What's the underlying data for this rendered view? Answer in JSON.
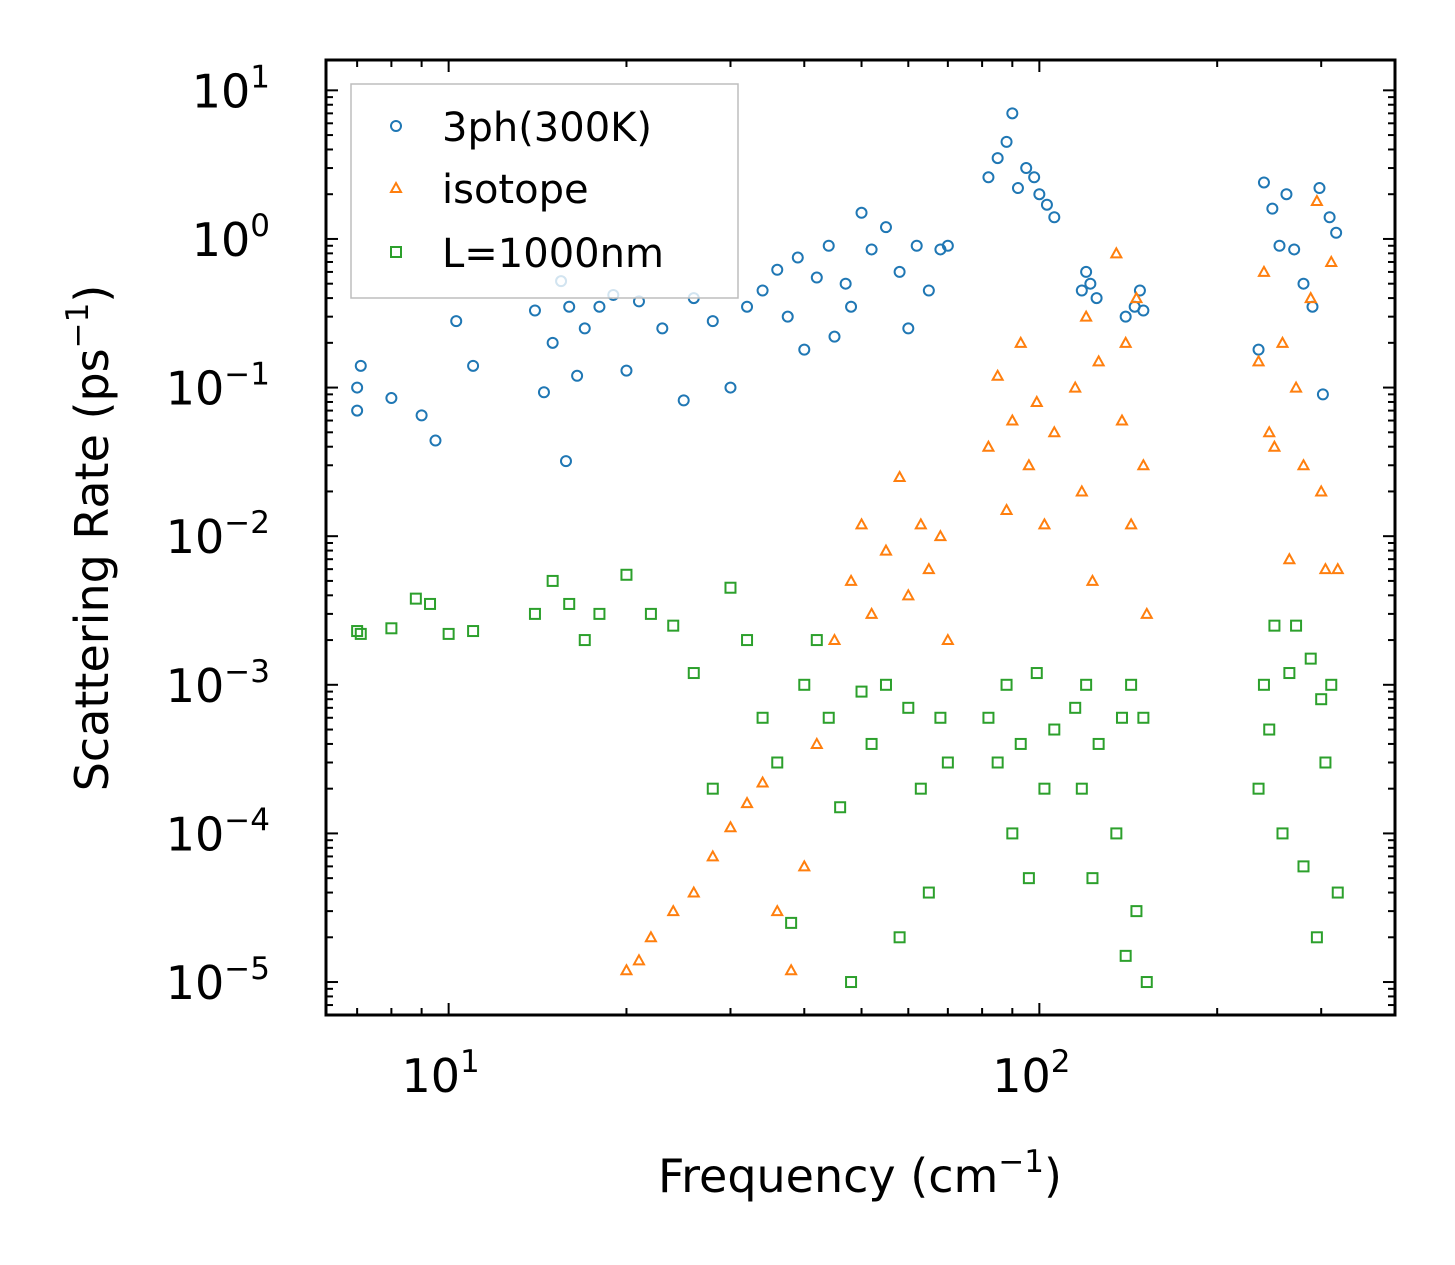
{
  "chart_data": {
    "type": "scatter",
    "xscale": "log",
    "yscale": "log",
    "xlim": [
      6.2,
      400
    ],
    "ylim": [
      6e-06,
      16
    ],
    "xlabel": "Frequency (cm",
    "xlabel_exp": "−1",
    "xlabel_end": ")",
    "ylabel": "Scattering Rate (ps",
    "ylabel_exp": "−1",
    "ylabel_end": ")",
    "x_ticks": [
      {
        "value": 10,
        "base": "10",
        "exp": "1"
      },
      {
        "value": 100,
        "base": "10",
        "exp": "2"
      }
    ],
    "y_ticks": [
      {
        "value": 10,
        "base": "10",
        "exp": "1"
      },
      {
        "value": 1,
        "base": "10",
        "exp": "0"
      },
      {
        "value": 0.1,
        "base": "10",
        "exp": "−1"
      },
      {
        "value": 0.01,
        "base": "10",
        "exp": "−2"
      },
      {
        "value": 0.001,
        "base": "10",
        "exp": "−3"
      },
      {
        "value": 0.0001,
        "base": "10",
        "exp": "−4"
      },
      {
        "value": 1e-05,
        "base": "10",
        "exp": "−5"
      }
    ],
    "legend_position": "top-left",
    "series": [
      {
        "name": "3ph(300K)",
        "marker": "circle",
        "color": "#1f77b4",
        "points": [
          [
            7.0,
            0.07
          ],
          [
            7.0,
            0.1
          ],
          [
            7.1,
            0.14
          ],
          [
            8.0,
            0.085
          ],
          [
            9.0,
            0.065
          ],
          [
            9.5,
            0.044
          ],
          [
            10.3,
            0.28
          ],
          [
            11.0,
            0.14
          ],
          [
            14.0,
            0.33
          ],
          [
            14.5,
            0.093
          ],
          [
            15.0,
            0.2
          ],
          [
            15.5,
            0.52
          ],
          [
            15.8,
            0.032
          ],
          [
            16.0,
            0.35
          ],
          [
            16.5,
            0.12
          ],
          [
            17.0,
            0.25
          ],
          [
            18.0,
            0.35
          ],
          [
            19.0,
            0.42
          ],
          [
            20.0,
            0.13
          ],
          [
            21.0,
            0.38
          ],
          [
            23.0,
            0.25
          ],
          [
            25.0,
            0.082
          ],
          [
            26.0,
            0.4
          ],
          [
            28.0,
            0.28
          ],
          [
            30.0,
            0.1
          ],
          [
            32.0,
            0.35
          ],
          [
            34.0,
            0.45
          ],
          [
            36.0,
            0.62
          ],
          [
            37.5,
            0.3
          ],
          [
            39.0,
            0.75
          ],
          [
            40.0,
            0.18
          ],
          [
            42.0,
            0.55
          ],
          [
            44.0,
            0.9
          ],
          [
            45.0,
            0.22
          ],
          [
            47.0,
            0.5
          ],
          [
            48.0,
            0.35
          ],
          [
            50.0,
            1.5
          ],
          [
            52.0,
            0.85
          ],
          [
            55.0,
            1.2
          ],
          [
            58.0,
            0.6
          ],
          [
            60.0,
            0.25
          ],
          [
            62.0,
            0.9
          ],
          [
            65.0,
            0.45
          ],
          [
            68.0,
            0.85
          ],
          [
            70.0,
            0.9
          ],
          [
            82.0,
            2.6
          ],
          [
            85.0,
            3.5
          ],
          [
            88.0,
            4.5
          ],
          [
            90.0,
            7.0
          ],
          [
            92.0,
            2.2
          ],
          [
            95.0,
            3.0
          ],
          [
            98.0,
            2.6
          ],
          [
            100.0,
            2.0
          ],
          [
            103.0,
            1.7
          ],
          [
            106.0,
            1.4
          ],
          [
            118.0,
            0.45
          ],
          [
            120.0,
            0.6
          ],
          [
            122.0,
            0.5
          ],
          [
            125.0,
            0.4
          ],
          [
            140.0,
            0.3
          ],
          [
            145.0,
            0.35
          ],
          [
            148.0,
            0.45
          ],
          [
            150.0,
            0.33
          ],
          [
            235.0,
            0.18
          ],
          [
            240.0,
            2.4
          ],
          [
            248.0,
            1.6
          ],
          [
            255.0,
            0.9
          ],
          [
            262.0,
            2.0
          ],
          [
            270.0,
            0.85
          ],
          [
            280.0,
            0.5
          ],
          [
            290.0,
            0.35
          ],
          [
            298.0,
            2.2
          ],
          [
            302.0,
            0.09
          ],
          [
            310.0,
            1.4
          ],
          [
            318.0,
            1.1
          ]
        ]
      },
      {
        "name": "isotope",
        "marker": "triangle",
        "color": "#ff7f0e",
        "points": [
          [
            20.0,
            1.2e-05
          ],
          [
            21.0,
            1.4e-05
          ],
          [
            22.0,
            2e-05
          ],
          [
            24.0,
            3e-05
          ],
          [
            26.0,
            4e-05
          ],
          [
            28.0,
            7e-05
          ],
          [
            30.0,
            0.00011
          ],
          [
            32.0,
            0.00016
          ],
          [
            34.0,
            0.00022
          ],
          [
            36.0,
            3e-05
          ],
          [
            38.0,
            1.2e-05
          ],
          [
            40.0,
            6e-05
          ],
          [
            42.0,
            0.0004
          ],
          [
            45.0,
            0.002
          ],
          [
            48.0,
            0.005
          ],
          [
            50.0,
            0.012
          ],
          [
            52.0,
            0.003
          ],
          [
            55.0,
            0.008
          ],
          [
            58.0,
            0.025
          ],
          [
            60.0,
            0.004
          ],
          [
            63.0,
            0.012
          ],
          [
            65.0,
            0.006
          ],
          [
            68.0,
            0.01
          ],
          [
            70.0,
            0.002
          ],
          [
            82.0,
            0.04
          ],
          [
            85.0,
            0.12
          ],
          [
            88.0,
            0.015
          ],
          [
            90.0,
            0.06
          ],
          [
            93.0,
            0.2
          ],
          [
            96.0,
            0.03
          ],
          [
            99.0,
            0.08
          ],
          [
            102.0,
            0.012
          ],
          [
            106.0,
            0.05
          ],
          [
            115.0,
            0.1
          ],
          [
            118.0,
            0.02
          ],
          [
            120.0,
            0.3
          ],
          [
            123.0,
            0.005
          ],
          [
            126.0,
            0.15
          ],
          [
            135.0,
            0.8
          ],
          [
            138.0,
            0.06
          ],
          [
            140.0,
            0.2
          ],
          [
            143.0,
            0.012
          ],
          [
            146.0,
            0.4
          ],
          [
            150.0,
            0.03
          ],
          [
            152.0,
            0.003
          ],
          [
            235.0,
            0.15
          ],
          [
            240.0,
            0.6
          ],
          [
            245.0,
            0.05
          ],
          [
            250.0,
            0.04
          ],
          [
            258.0,
            0.2
          ],
          [
            265.0,
            0.007
          ],
          [
            272.0,
            0.1
          ],
          [
            280.0,
            0.03
          ],
          [
            288.0,
            0.4
          ],
          [
            295.0,
            1.8
          ],
          [
            300.0,
            0.02
          ],
          [
            305.0,
            0.006
          ],
          [
            312.0,
            0.7
          ],
          [
            320.0,
            0.006
          ]
        ]
      },
      {
        "name": "L=1000nm",
        "marker": "square",
        "color": "#2ca02c",
        "points": [
          [
            7.0,
            0.0023
          ],
          [
            7.1,
            0.0022
          ],
          [
            8.0,
            0.0024
          ],
          [
            8.8,
            0.0038
          ],
          [
            9.3,
            0.0035
          ],
          [
            10.0,
            0.0022
          ],
          [
            11.0,
            0.0023
          ],
          [
            14.0,
            0.003
          ],
          [
            15.0,
            0.005
          ],
          [
            16.0,
            0.0035
          ],
          [
            17.0,
            0.002
          ],
          [
            18.0,
            0.003
          ],
          [
            20.0,
            0.0055
          ],
          [
            22.0,
            0.003
          ],
          [
            24.0,
            0.0025
          ],
          [
            26.0,
            0.0012
          ],
          [
            28.0,
            0.0002
          ],
          [
            30.0,
            0.0045
          ],
          [
            32.0,
            0.002
          ],
          [
            34.0,
            0.0006
          ],
          [
            36.0,
            0.0003
          ],
          [
            38.0,
            2.5e-05
          ],
          [
            40.0,
            0.001
          ],
          [
            42.0,
            0.002
          ],
          [
            44.0,
            0.0006
          ],
          [
            46.0,
            0.00015
          ],
          [
            48.0,
            1e-05
          ],
          [
            50.0,
            0.0009
          ],
          [
            52.0,
            0.0004
          ],
          [
            55.0,
            0.001
          ],
          [
            58.0,
            2e-05
          ],
          [
            60.0,
            0.0007
          ],
          [
            63.0,
            0.0002
          ],
          [
            65.0,
            4e-05
          ],
          [
            68.0,
            0.0006
          ],
          [
            70.0,
            0.0003
          ],
          [
            82.0,
            0.0006
          ],
          [
            85.0,
            0.0003
          ],
          [
            88.0,
            0.001
          ],
          [
            90.0,
            0.0001
          ],
          [
            93.0,
            0.0004
          ],
          [
            96.0,
            5e-05
          ],
          [
            99.0,
            0.0012
          ],
          [
            102.0,
            0.0002
          ],
          [
            106.0,
            0.0005
          ],
          [
            115.0,
            0.0007
          ],
          [
            118.0,
            0.0002
          ],
          [
            120.0,
            0.001
          ],
          [
            123.0,
            5e-05
          ],
          [
            126.0,
            0.0004
          ],
          [
            135.0,
            0.0001
          ],
          [
            138.0,
            0.0006
          ],
          [
            140.0,
            1.5e-05
          ],
          [
            143.0,
            0.001
          ],
          [
            146.0,
            3e-05
          ],
          [
            150.0,
            0.0006
          ],
          [
            152.0,
            1e-05
          ],
          [
            235.0,
            0.0002
          ],
          [
            240.0,
            0.001
          ],
          [
            245.0,
            0.0005
          ],
          [
            250.0,
            0.0025
          ],
          [
            258.0,
            0.0001
          ],
          [
            265.0,
            0.0012
          ],
          [
            272.0,
            0.0025
          ],
          [
            280.0,
            6e-05
          ],
          [
            288.0,
            0.0015
          ],
          [
            295.0,
            2e-05
          ],
          [
            300.0,
            0.0008
          ],
          [
            305.0,
            0.0003
          ],
          [
            312.0,
            0.001
          ],
          [
            320.0,
            4e-05
          ]
        ]
      }
    ]
  }
}
